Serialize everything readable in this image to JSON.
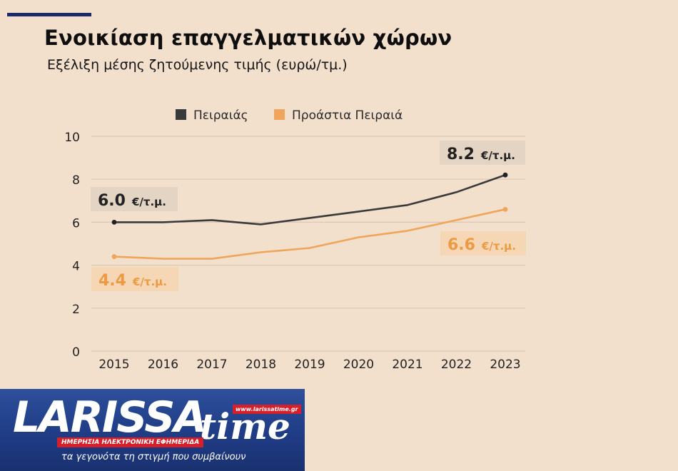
{
  "header": {
    "title": "Ενοικίαση επαγγελματικών χώρων",
    "subtitle": "Εξέλιξη μέσης ζητούμενης τιμής (ευρώ/τμ.)"
  },
  "chart_data": {
    "type": "line",
    "title": "Ενοικίαση επαγγελματικών χώρων",
    "subtitle": "Εξέλιξη μέσης ζητούμενης τιμής (ευρώ/τμ.)",
    "x": [
      "2015",
      "2016",
      "2017",
      "2018",
      "2019",
      "2020",
      "2021",
      "2022",
      "2023"
    ],
    "ylim": [
      0,
      10
    ],
    "yticks": [
      "0",
      "2",
      "4",
      "6",
      "8",
      "10"
    ],
    "grid": true,
    "legend_placement": "top",
    "series": [
      {
        "name": "Πειραιάς",
        "color": "#3a3a3a",
        "values": [
          6.0,
          6.0,
          6.1,
          5.9,
          6.2,
          6.5,
          6.8,
          7.4,
          8.2
        ]
      },
      {
        "name": "Προάστια Πειραιά",
        "color": "#efa55a",
        "values": [
          4.4,
          4.3,
          4.3,
          4.6,
          4.8,
          5.3,
          5.6,
          6.1,
          6.6
        ]
      }
    ],
    "annotations": [
      {
        "series": 0,
        "point": 0,
        "value": "6.0",
        "unit": "€/τ.μ."
      },
      {
        "series": 0,
        "point": 8,
        "value": "8.2",
        "unit": "€/τ.μ."
      },
      {
        "series": 1,
        "point": 0,
        "value": "4.4",
        "unit": "€/τ.μ."
      },
      {
        "series": 1,
        "point": 8,
        "value": "6.6",
        "unit": "€/τ.μ."
      }
    ]
  },
  "banner": {
    "brand": "LARISSA",
    "brand_suffix": "time",
    "url": "www.larissatime.gr",
    "tagline": "ΗΜΕΡΗΣΙΑ ΗΛΕΚΤΡΟΝΙΚΗ ΕΦΗΜΕΡΙΔΑ",
    "slogan": "τα γεγονότα τη στιγμή που συμβαίνουν"
  }
}
